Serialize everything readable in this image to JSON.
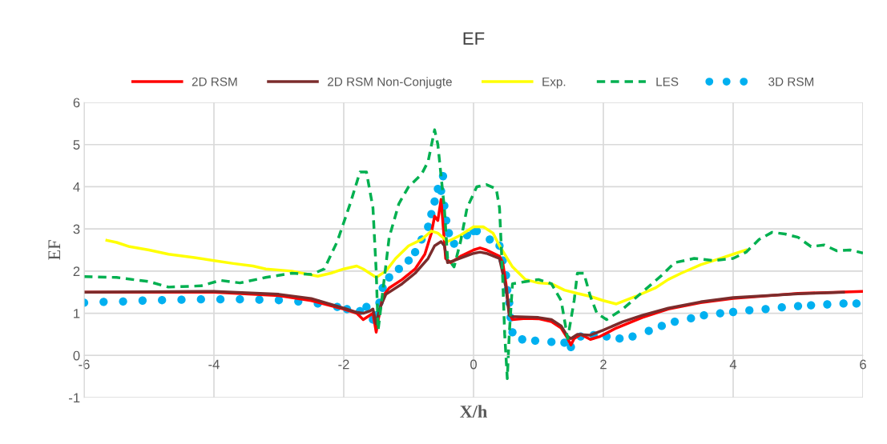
{
  "chart_data": {
    "type": "line",
    "title": "EF",
    "xlabel": "X/h",
    "ylabel": "EF",
    "xlim": [
      -6,
      6
    ],
    "xticks": [
      -6,
      -4,
      -2,
      0,
      2,
      4,
      6
    ],
    "ylim": [
      -1,
      6
    ],
    "yticks": [
      -1,
      0,
      1,
      2,
      3,
      4,
      5,
      6
    ],
    "grid": true,
    "legend": "top",
    "series": [
      {
        "name": "2D RSM",
        "color": "#ff0000",
        "line_style": "solid",
        "marker": "none",
        "x": [
          -6,
          -4,
          -3,
          -2.5,
          -2,
          -1.8,
          -1.7,
          -1.6,
          -1.55,
          -1.5,
          -1.45,
          -1.4,
          -1.3,
          -1.1,
          -0.9,
          -0.75,
          -0.65,
          -0.6,
          -0.55,
          -0.5,
          -0.47,
          -0.43,
          -0.35,
          -0.2,
          0,
          0.1,
          0.2,
          0.4,
          0.45,
          0.5,
          0.55,
          0.6,
          0.8,
          1.0,
          1.2,
          1.35,
          1.45,
          1.5,
          1.55,
          1.65,
          1.8,
          1.95,
          2.2,
          2.6,
          3,
          3.5,
          4,
          5,
          6
        ],
        "values": [
          1.5,
          1.5,
          1.42,
          1.3,
          1.1,
          1.0,
          0.85,
          0.95,
          1.0,
          0.55,
          1.0,
          1.4,
          1.6,
          1.8,
          2.05,
          2.4,
          2.9,
          3.3,
          3.2,
          3.7,
          3.1,
          2.3,
          2.2,
          2.35,
          2.5,
          2.55,
          2.5,
          2.35,
          2.2,
          1.7,
          1.0,
          0.85,
          0.88,
          0.87,
          0.8,
          0.65,
          0.4,
          0.25,
          0.4,
          0.5,
          0.38,
          0.45,
          0.65,
          0.9,
          1.1,
          1.25,
          1.35,
          1.47,
          1.52
        ]
      },
      {
        "name": "2D RSM Non-Conjugte",
        "color": "#7b2c2c",
        "line_style": "solid",
        "marker": "none",
        "x": [
          -6,
          -4,
          -3,
          -2.5,
          -2,
          -1.8,
          -1.7,
          -1.6,
          -1.55,
          -1.5,
          -1.45,
          -1.35,
          -1.1,
          -0.9,
          -0.7,
          -0.6,
          -0.5,
          -0.45,
          -0.4,
          -0.3,
          0,
          0.1,
          0.2,
          0.4,
          0.5,
          0.55,
          0.6,
          1.0,
          1.2,
          1.35,
          1.45,
          1.5,
          1.6,
          1.8,
          2.0,
          2.3,
          2.6,
          3,
          3.5,
          4,
          5,
          5.7
        ],
        "values": [
          1.5,
          1.52,
          1.45,
          1.35,
          1.12,
          1.02,
          1.0,
          1.05,
          1.1,
          0.75,
          1.1,
          1.45,
          1.7,
          1.95,
          2.3,
          2.6,
          2.7,
          2.6,
          2.2,
          2.25,
          2.42,
          2.45,
          2.42,
          2.3,
          1.6,
          0.95,
          0.92,
          0.9,
          0.85,
          0.7,
          0.45,
          0.4,
          0.5,
          0.48,
          0.6,
          0.8,
          0.95,
          1.12,
          1.27,
          1.37,
          1.46,
          1.5
        ]
      },
      {
        "name": "Exp.",
        "color": "#ffff00",
        "line_style": "solid",
        "marker": "none",
        "x": [
          -5.65,
          -5.5,
          -5.3,
          -5,
          -4.7,
          -4.3,
          -4,
          -3.7,
          -3.4,
          -3.2,
          -2.8,
          -2.4,
          -2.2,
          -2,
          -1.8,
          -1.7,
          -1.6,
          -1.5,
          -1.35,
          -1.2,
          -1.0,
          -0.8,
          -0.65,
          -0.55,
          -0.4,
          -0.2,
          0,
          0.15,
          0.3,
          0.4,
          0.6,
          0.8,
          1.0,
          1.2,
          1.4,
          1.6,
          1.8,
          2.0,
          2.2,
          2.5,
          2.8,
          3.0,
          3.2,
          3.5,
          3.8,
          4.0,
          4.2
        ],
        "values": [
          2.73,
          2.68,
          2.58,
          2.5,
          2.4,
          2.32,
          2.25,
          2.18,
          2.12,
          2.05,
          2.0,
          1.88,
          1.95,
          2.05,
          2.12,
          2.05,
          1.95,
          1.85,
          2.0,
          2.3,
          2.6,
          2.75,
          2.95,
          2.9,
          2.7,
          2.85,
          3.05,
          3.05,
          2.9,
          2.6,
          2.1,
          1.8,
          1.72,
          1.7,
          1.55,
          1.47,
          1.4,
          1.3,
          1.22,
          1.4,
          1.6,
          1.8,
          1.95,
          2.15,
          2.3,
          2.4,
          2.5
        ]
      },
      {
        "name": "LES",
        "color": "#00b050",
        "line_style": "dashed",
        "marker": "none",
        "x": [
          -6,
          -5.5,
          -5,
          -4.7,
          -4.2,
          -3.9,
          -3.6,
          -3.2,
          -2.8,
          -2.5,
          -2.3,
          -2.1,
          -1.9,
          -1.75,
          -1.65,
          -1.55,
          -1.5,
          -1.47,
          -1.4,
          -1.3,
          -1.15,
          -1.0,
          -0.8,
          -0.7,
          -0.6,
          -0.55,
          -0.45,
          -0.4,
          -0.3,
          -0.2,
          -0.1,
          0.05,
          0.2,
          0.35,
          0.4,
          0.45,
          0.48,
          0.52,
          0.55,
          0.6,
          0.8,
          1.0,
          1.2,
          1.35,
          1.45,
          1.55,
          1.6,
          1.7,
          1.8,
          1.9,
          2.05,
          2.3,
          2.6,
          2.9,
          3.1,
          3.4,
          3.7,
          4.0,
          4.2,
          4.4,
          4.6,
          4.8,
          5.0,
          5.2,
          5.4,
          5.6,
          5.8,
          6.0
        ],
        "values": [
          1.87,
          1.85,
          1.75,
          1.62,
          1.65,
          1.78,
          1.72,
          1.85,
          1.95,
          1.92,
          2.05,
          2.7,
          3.6,
          4.35,
          4.35,
          3.5,
          2.0,
          0.6,
          1.5,
          2.8,
          3.6,
          4.0,
          4.3,
          4.6,
          5.35,
          5.0,
          3.5,
          2.3,
          2.1,
          2.7,
          3.5,
          4.0,
          4.05,
          3.95,
          3.5,
          1.8,
          0.5,
          -0.55,
          0.5,
          1.7,
          1.75,
          1.8,
          1.7,
          1.3,
          0.4,
          1.3,
          1.95,
          1.95,
          1.4,
          1.0,
          0.85,
          1.1,
          1.5,
          1.9,
          2.2,
          2.3,
          2.25,
          2.3,
          2.45,
          2.75,
          2.92,
          2.88,
          2.8,
          2.58,
          2.62,
          2.48,
          2.5,
          2.43
        ]
      },
      {
        "name": "3D RSM",
        "type": "scatter",
        "color": "#00b0f0",
        "marker": "circle",
        "x": [
          -6,
          -5.7,
          -5.4,
          -5.1,
          -4.8,
          -4.5,
          -4.2,
          -3.9,
          -3.6,
          -3.3,
          -3.0,
          -2.7,
          -2.4,
          -2.1,
          -1.95,
          -1.75,
          -1.65,
          -1.55,
          -1.5,
          -1.45,
          -1.4,
          -1.3,
          -1.15,
          -1.0,
          -0.9,
          -0.8,
          -0.7,
          -0.65,
          -0.6,
          -0.55,
          -0.5,
          -0.47,
          -0.45,
          -0.42,
          -0.38,
          -0.3,
          -0.1,
          0.0,
          0.05,
          0.25,
          0.4,
          0.45,
          0.5,
          0.52,
          0.55,
          0.57,
          0.6,
          0.75,
          0.95,
          1.2,
          1.4,
          1.5,
          1.65,
          1.85,
          2.05,
          2.25,
          2.45,
          2.7,
          2.9,
          3.1,
          3.35,
          3.55,
          3.8,
          4.0,
          4.25,
          4.5,
          4.75,
          5.0,
          5.2,
          5.45,
          5.7,
          5.9
        ],
        "values": [
          1.25,
          1.27,
          1.28,
          1.3,
          1.31,
          1.32,
          1.33,
          1.33,
          1.33,
          1.32,
          1.31,
          1.28,
          1.23,
          1.15,
          1.1,
          1.05,
          1.15,
          0.85,
          0.95,
          1.25,
          1.6,
          1.85,
          2.05,
          2.25,
          2.45,
          2.75,
          3.05,
          3.35,
          3.65,
          3.95,
          3.9,
          4.25,
          3.55,
          3.2,
          2.9,
          2.65,
          2.85,
          2.95,
          2.95,
          2.75,
          2.6,
          2.25,
          1.9,
          1.55,
          1.25,
          0.9,
          0.55,
          0.38,
          0.35,
          0.32,
          0.3,
          0.2,
          0.45,
          0.48,
          0.45,
          0.4,
          0.45,
          0.58,
          0.7,
          0.8,
          0.88,
          0.95,
          1.0,
          1.03,
          1.07,
          1.1,
          1.14,
          1.17,
          1.19,
          1.21,
          1.23,
          1.23
        ]
      }
    ]
  }
}
